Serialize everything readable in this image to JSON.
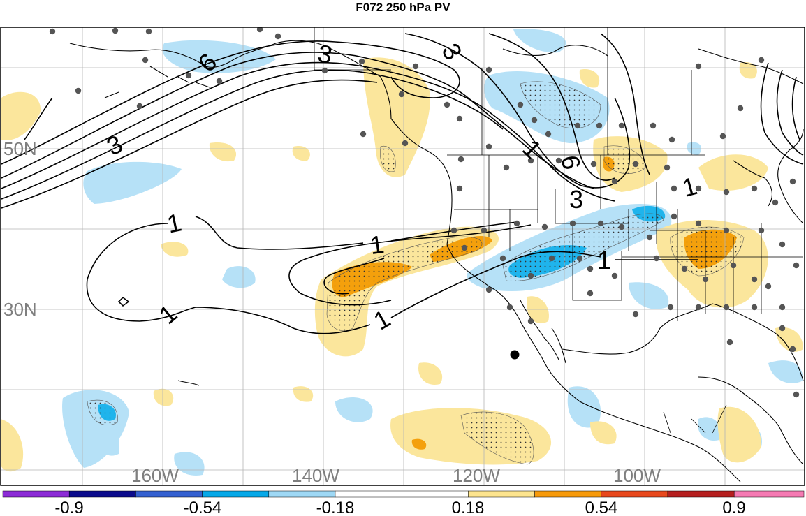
{
  "title": "F072 250 hPa PV",
  "latitude_labels": [
    "50N",
    "30N"
  ],
  "longitude_labels": [
    "160W",
    "140W",
    "120W",
    "100W"
  ],
  "contour_labels": {
    "one": "1",
    "three": "3",
    "six": "6"
  },
  "colorbar": {
    "colors": [
      "#8c2bd6",
      "#0b0b8c",
      "#3460d0",
      "#06a8e8",
      "#9ed8f5",
      "#ffffff",
      "#fde48e",
      "#f79a0a",
      "#e8481c",
      "#b51e1e",
      "#f57ab3"
    ],
    "tick_labels": [
      "-0.9",
      "-0.54",
      "-0.18",
      "0.18",
      "0.54",
      "0.9"
    ]
  },
  "colors": {
    "negative_light": "#b6e1f7",
    "negative_mid": "#1fb4ec",
    "positive_light": "#fbe69c",
    "positive_mid": "#f4a00c",
    "station_dot": "#555555",
    "grid": "#b4b4b4"
  }
}
